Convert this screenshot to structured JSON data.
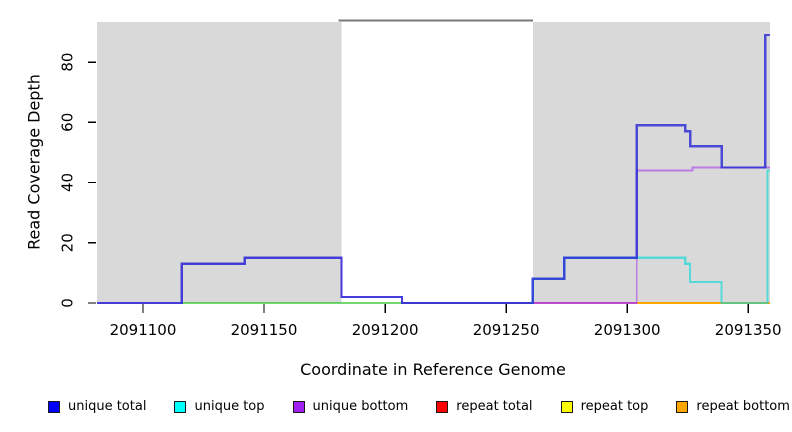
{
  "chart_data": {
    "type": "line",
    "subtype": "step",
    "title": "",
    "xlabel": "Coordinate in Reference Genome",
    "ylabel": "Read Coverage Depth",
    "xlim": [
      2091081,
      2091359
    ],
    "ylim": [
      0,
      93.3
    ],
    "x_ticks": [
      2091100,
      2091150,
      2091200,
      2091250,
      2091300,
      2091350
    ],
    "y_ticks": [
      0,
      20,
      40,
      60,
      80
    ],
    "grid": false,
    "legend_position": "bottom",
    "plot_background": "#FFFFFF",
    "background_bands": [
      {
        "x0": 2091081,
        "x1": 2091182,
        "fill": "#D9D9D9"
      },
      {
        "x0": 2091182,
        "x1": 2091261,
        "fill": "#FFFFFF",
        "top_border": "#787878"
      },
      {
        "x0": 2091261,
        "x1": 2091359,
        "fill": "#D9D9D9"
      }
    ],
    "series": [
      {
        "name": "unique total",
        "legend_color": "#0000FF",
        "stroke": "#2929D6",
        "opacity": 0.82,
        "width": 2.4,
        "draw": true,
        "steps": [
          [
            2091081,
            0
          ],
          [
            2091116,
            13
          ],
          [
            2091142,
            15
          ],
          [
            2091182,
            2
          ],
          [
            2091207,
            0
          ],
          [
            2091261,
            8
          ],
          [
            2091274,
            15
          ],
          [
            2091304,
            59
          ],
          [
            2091324,
            57
          ],
          [
            2091326,
            52
          ],
          [
            2091339,
            45
          ],
          [
            2091357,
            89
          ],
          [
            2091359,
            89
          ]
        ]
      },
      {
        "name": "unique top",
        "legend_color": "#00FFFF",
        "stroke": "#00D8D8",
        "opacity": 0.6,
        "width": 2.2,
        "draw": true,
        "steps": [
          [
            2091260,
            0
          ],
          [
            2091261,
            8
          ],
          [
            2091274,
            15
          ],
          [
            2091324,
            13
          ],
          [
            2091326,
            7
          ],
          [
            2091339,
            0
          ],
          [
            2091358,
            44
          ],
          [
            2091359,
            44
          ]
        ]
      },
      {
        "name": "unique bottom",
        "legend_color": "#A020F0",
        "stroke": "#A020F0",
        "opacity": 0.5,
        "width": 1.6,
        "draw": true,
        "steps": [
          [
            2091081,
            0
          ],
          [
            2091116,
            13
          ],
          [
            2091142,
            15
          ],
          [
            2091182,
            2
          ],
          [
            2091207,
            0
          ],
          [
            2091304,
            44
          ],
          [
            2091327,
            45
          ],
          [
            2091359,
            45
          ]
        ]
      },
      {
        "name": "repeat total",
        "legend_color": "#FF0000",
        "stroke": "#CC2277",
        "opacity": 0.6,
        "width": 2,
        "draw": false,
        "steps": [
          [
            2091265,
            0
          ],
          [
            2091359,
            0
          ]
        ]
      },
      {
        "name": "repeat top",
        "legend_color": "#FFFF00",
        "stroke": "#FFFF00",
        "opacity": 0.6,
        "width": 2,
        "draw": false,
        "steps": [
          [
            2091116,
            0
          ],
          [
            2091261,
            0
          ]
        ]
      },
      {
        "name": "repeat bottom",
        "legend_color": "#FFA500",
        "stroke": "#FFA500",
        "opacity": 1,
        "width": 2.4,
        "draw": false,
        "steps": [
          [
            2091304,
            0
          ],
          [
            2091359,
            0
          ]
        ]
      }
    ],
    "baseline_overlap_segments": [
      {
        "x0": 2091116,
        "x1": 2091261,
        "color": "#00BB00",
        "opacity": 0.55,
        "width": 2.0
      },
      {
        "x0": 2091261,
        "x1": 2091304,
        "color": "#CC2277",
        "opacity": 0.6,
        "width": 2.0
      },
      {
        "x0": 2091304,
        "x1": 2091359,
        "color": "#FFA500",
        "opacity": 1,
        "width": 2.4
      }
    ]
  }
}
